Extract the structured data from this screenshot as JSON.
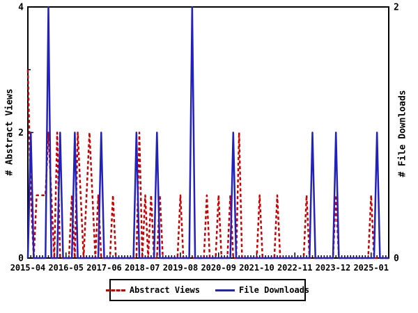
{
  "figure": {
    "background": "#ffffff",
    "border_color": "#000000"
  },
  "left_axis": {
    "title": "# Abstract Views",
    "tick_values": [
      0,
      2,
      4
    ],
    "tick_labels": [
      "0",
      "2",
      "4"
    ],
    "minor_tick_values": [
      1,
      3
    ],
    "range": [
      0,
      4
    ]
  },
  "right_axis": {
    "title": "# File Downloads",
    "tick_values": [
      0,
      2
    ],
    "tick_labels": [
      "0",
      "2"
    ],
    "range": [
      0,
      2
    ]
  },
  "x_axis": {
    "tick_indices": [
      0,
      13,
      26,
      39,
      52,
      65,
      78,
      91,
      104,
      117
    ],
    "tick_labels": [
      "2015-04",
      "2016-05",
      "2017-06",
      "2018-07",
      "2019-08",
      "2020-09",
      "2021-10",
      "2022-11",
      "2023-12",
      "2025-01"
    ],
    "minor_ticks": "monthly"
  },
  "legend": {
    "items": [
      {
        "label": "Abstract Views",
        "color": "#cc0000",
        "style": "dashed"
      },
      {
        "label": "File Downloads",
        "color": "#2222bb",
        "style": "solid"
      }
    ]
  },
  "chart_data": {
    "type": "line",
    "title": "",
    "grid": false,
    "legend_position": "bottom-center",
    "left_ylim": [
      0,
      4
    ],
    "right_ylim": [
      0,
      2
    ],
    "months": [
      "2015-04",
      "2015-05",
      "2015-06",
      "2015-07",
      "2015-08",
      "2015-09",
      "2015-10",
      "2015-11",
      "2015-12",
      "2016-01",
      "2016-02",
      "2016-03",
      "2016-04",
      "2016-05",
      "2016-06",
      "2016-07",
      "2016-08",
      "2016-09",
      "2016-10",
      "2016-11",
      "2016-12",
      "2017-01",
      "2017-02",
      "2017-03",
      "2017-04",
      "2017-05",
      "2017-06",
      "2017-07",
      "2017-08",
      "2017-09",
      "2017-10",
      "2017-11",
      "2017-12",
      "2018-01",
      "2018-02",
      "2018-03",
      "2018-04",
      "2018-05",
      "2018-06",
      "2018-07",
      "2018-08",
      "2018-09",
      "2018-10",
      "2018-11",
      "2018-12",
      "2019-01",
      "2019-02",
      "2019-03",
      "2019-04",
      "2019-05",
      "2019-06",
      "2019-07",
      "2019-08",
      "2019-09",
      "2019-10",
      "2019-11",
      "2019-12",
      "2020-01",
      "2020-02",
      "2020-03",
      "2020-04",
      "2020-05",
      "2020-06",
      "2020-07",
      "2020-08",
      "2020-09",
      "2020-10",
      "2020-11",
      "2020-12",
      "2021-01",
      "2021-02",
      "2021-03",
      "2021-04",
      "2021-05",
      "2021-06",
      "2021-07",
      "2021-08",
      "2021-09",
      "2021-10",
      "2021-11",
      "2021-12",
      "2022-01",
      "2022-02",
      "2022-03",
      "2022-04",
      "2022-05",
      "2022-06",
      "2022-07",
      "2022-08",
      "2022-09",
      "2022-10",
      "2022-11",
      "2022-12",
      "2023-01",
      "2023-02",
      "2023-03",
      "2023-04",
      "2023-05",
      "2023-06",
      "2023-07",
      "2023-08",
      "2023-09",
      "2023-10",
      "2023-11",
      "2023-12",
      "2024-01",
      "2024-02",
      "2024-03",
      "2024-04",
      "2024-05",
      "2024-06",
      "2024-07",
      "2024-08",
      "2024-09",
      "2024-10",
      "2024-11",
      "2024-12",
      "2025-01",
      "2025-02",
      "2025-03",
      "2025-04",
      "2025-05",
      "2025-06",
      "2025-07"
    ],
    "series": [
      {
        "name": "Abstract Views",
        "axis": "left",
        "color": "#cc0000",
        "style": "dashed",
        "values": [
          3,
          1,
          0,
          1,
          1,
          1,
          1,
          2,
          1,
          0,
          2,
          0,
          0,
          0,
          0,
          1,
          0,
          2,
          1,
          0,
          1,
          2,
          1,
          0,
          1,
          0,
          0,
          0,
          0,
          1,
          0,
          0,
          0,
          0,
          0,
          0,
          0,
          0,
          2,
          0,
          1,
          0,
          1,
          0,
          0,
          1,
          0,
          0,
          0,
          0,
          0,
          0,
          1,
          0,
          0,
          0,
          0,
          0,
          0,
          0,
          0,
          1,
          0,
          0,
          0,
          1,
          0,
          0,
          0,
          1,
          0,
          0,
          2,
          0,
          0,
          0,
          0,
          0,
          0,
          1,
          0,
          0,
          0,
          0,
          0,
          1,
          0,
          0,
          0,
          0,
          0,
          0,
          0,
          0,
          0,
          1,
          0,
          0,
          0,
          0,
          0,
          0,
          0,
          0,
          0,
          1,
          0,
          0,
          0,
          0,
          0,
          0,
          0,
          0,
          0,
          0,
          0,
          1,
          0,
          0,
          0,
          0,
          0,
          0
        ]
      },
      {
        "name": "File Downloads",
        "axis": "right",
        "color": "#2222bb",
        "style": "solid",
        "values": [
          0,
          1,
          0,
          0,
          0,
          0,
          0,
          2,
          0,
          0,
          0,
          1,
          0,
          0,
          0,
          0,
          1,
          0,
          0,
          0,
          0,
          0,
          0,
          0,
          0,
          1,
          0,
          0,
          0,
          0,
          0,
          0,
          0,
          0,
          0,
          0,
          0,
          1,
          0,
          0,
          0,
          0,
          0,
          0,
          1,
          0,
          0,
          0,
          0,
          0,
          0,
          0,
          0,
          0,
          0,
          0,
          2,
          0,
          0,
          0,
          0,
          0,
          0,
          0,
          0,
          0,
          0,
          0,
          0,
          0,
          1,
          0,
          0,
          0,
          0,
          0,
          0,
          0,
          0,
          0,
          0,
          0,
          0,
          0,
          0,
          0,
          0,
          0,
          0,
          0,
          0,
          0,
          0,
          0,
          0,
          0,
          0,
          1,
          0,
          0,
          0,
          0,
          0,
          0,
          0,
          1,
          0,
          0,
          0,
          0,
          0,
          0,
          0,
          0,
          0,
          0,
          0,
          0,
          0,
          1,
          0,
          0,
          0,
          0
        ]
      }
    ]
  }
}
